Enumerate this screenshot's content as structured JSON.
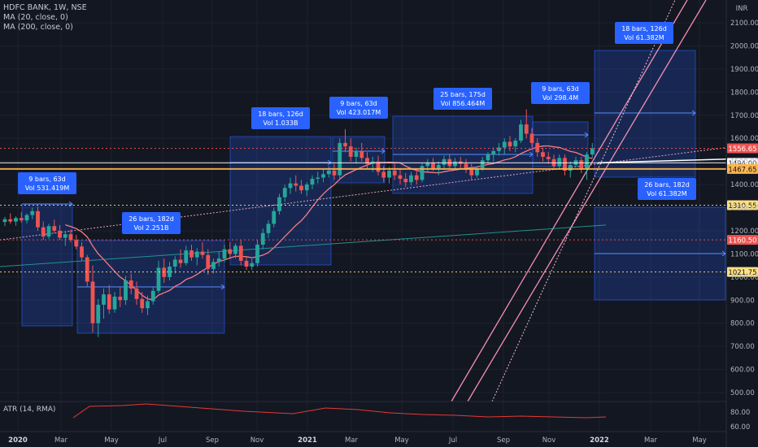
{
  "chart_data": {
    "type": "candlestick",
    "symbol_line": "HDFC BANK, 1W, NSE",
    "indicators": [
      "MA (20, close, 0)",
      "MA (200, close, 0)"
    ],
    "atr_label": "ATR (14, RMA)",
    "currency": "INR",
    "ylim": [
      460,
      2180
    ],
    "y_ticks": [
      500,
      600,
      700,
      800,
      900,
      1000,
      1100,
      1200,
      1300,
      1400,
      1500,
      1600,
      1700,
      1800,
      1900,
      2000,
      2100
    ],
    "y_tick_labels": [
      "500.00",
      "600.00",
      "700.00",
      "800.00",
      "900.00",
      "1000.00",
      "1100.00",
      "1200.00",
      "1300.00",
      "1400.00",
      "1500.00",
      "1600.00",
      "1700.00",
      "1800.00",
      "1900.00",
      "2000.00",
      "2100.00"
    ],
    "atr_ticks": [
      "80.00",
      "60.00"
    ],
    "x_ticks": [
      "2020",
      "Mar",
      "May",
      "Jul",
      "Sep",
      "Nov",
      "2021",
      "Mar",
      "May",
      "Jul",
      "Sep",
      "Nov",
      "2022",
      "Mar",
      "May"
    ],
    "price_badges": [
      {
        "value": 1556.65,
        "label": "1556.65",
        "color": "#ef5350"
      },
      {
        "value": 1494.0,
        "label": "1494.00",
        "color": "#ffffff"
      },
      {
        "value": 1467.65,
        "label": "1467.65",
        "color": "#ffb74d"
      },
      {
        "value": 1310.55,
        "label": "1310.55",
        "color": "#ffe082"
      },
      {
        "value": 1160.5,
        "label": "1160.50",
        "color": "#ef5350"
      },
      {
        "value": 1021.75,
        "label": "1021.75",
        "color": "#ffe082"
      }
    ],
    "range_boxes": [
      {
        "bars": "9 bars, 63d",
        "vol": "Vol 531.419M"
      },
      {
        "bars": "26 bars, 182d",
        "vol": "Vol 2.251B"
      },
      {
        "bars": "18 bars, 126d",
        "vol": "Vol 1.033B"
      },
      {
        "bars": "9 bars, 63d",
        "vol": "Vol 423.017M"
      },
      {
        "bars": "25 bars, 175d",
        "vol": "Vol 856.464M"
      },
      {
        "bars": "9 bars, 63d",
        "vol": "Vol 298.4M"
      },
      {
        "bars": "18 bars, 126d",
        "vol": "Vol 61.382M"
      },
      {
        "bars": "26 bars, 182d",
        "vol": "Vol 61.382M"
      }
    ],
    "candles": [
      {
        "o": 1238,
        "h": 1260,
        "l": 1220,
        "c": 1250
      },
      {
        "o": 1250,
        "h": 1275,
        "l": 1230,
        "c": 1240
      },
      {
        "o": 1240,
        "h": 1262,
        "l": 1222,
        "c": 1255
      },
      {
        "o": 1255,
        "h": 1280,
        "l": 1235,
        "c": 1245
      },
      {
        "o": 1245,
        "h": 1275,
        "l": 1232,
        "c": 1268
      },
      {
        "o": 1268,
        "h": 1300,
        "l": 1250,
        "c": 1285
      },
      {
        "o": 1285,
        "h": 1305,
        "l": 1200,
        "c": 1215
      },
      {
        "o": 1215,
        "h": 1240,
        "l": 1160,
        "c": 1175
      },
      {
        "o": 1175,
        "h": 1230,
        "l": 1165,
        "c": 1220
      },
      {
        "o": 1220,
        "h": 1248,
        "l": 1190,
        "c": 1200
      },
      {
        "o": 1200,
        "h": 1225,
        "l": 1160,
        "c": 1170
      },
      {
        "o": 1170,
        "h": 1195,
        "l": 1135,
        "c": 1185
      },
      {
        "o": 1185,
        "h": 1205,
        "l": 1150,
        "c": 1160
      },
      {
        "o": 1160,
        "h": 1182,
        "l": 1120,
        "c": 1132
      },
      {
        "o": 1132,
        "h": 1150,
        "l": 1070,
        "c": 1085
      },
      {
        "o": 1085,
        "h": 1095,
        "l": 960,
        "c": 980
      },
      {
        "o": 980,
        "h": 1050,
        "l": 760,
        "c": 800
      },
      {
        "o": 800,
        "h": 905,
        "l": 740,
        "c": 880
      },
      {
        "o": 880,
        "h": 950,
        "l": 820,
        "c": 925
      },
      {
        "o": 925,
        "h": 965,
        "l": 840,
        "c": 860
      },
      {
        "o": 860,
        "h": 935,
        "l": 845,
        "c": 915
      },
      {
        "o": 915,
        "h": 955,
        "l": 870,
        "c": 900
      },
      {
        "o": 900,
        "h": 1005,
        "l": 880,
        "c": 985
      },
      {
        "o": 985,
        "h": 1015,
        "l": 925,
        "c": 950
      },
      {
        "o": 950,
        "h": 980,
        "l": 880,
        "c": 905
      },
      {
        "o": 905,
        "h": 935,
        "l": 845,
        "c": 865
      },
      {
        "o": 865,
        "h": 920,
        "l": 835,
        "c": 895
      },
      {
        "o": 895,
        "h": 955,
        "l": 880,
        "c": 940
      },
      {
        "o": 940,
        "h": 1070,
        "l": 930,
        "c": 1040
      },
      {
        "o": 1040,
        "h": 1080,
        "l": 975,
        "c": 1000
      },
      {
        "o": 1000,
        "h": 1065,
        "l": 985,
        "c": 1045
      },
      {
        "o": 1045,
        "h": 1090,
        "l": 1015,
        "c": 1075
      },
      {
        "o": 1075,
        "h": 1120,
        "l": 1040,
        "c": 1060
      },
      {
        "o": 1060,
        "h": 1135,
        "l": 1050,
        "c": 1115
      },
      {
        "o": 1115,
        "h": 1140,
        "l": 1070,
        "c": 1085
      },
      {
        "o": 1085,
        "h": 1125,
        "l": 1050,
        "c": 1110
      },
      {
        "o": 1110,
        "h": 1150,
        "l": 1080,
        "c": 1095
      },
      {
        "o": 1095,
        "h": 1120,
        "l": 1010,
        "c": 1035
      },
      {
        "o": 1035,
        "h": 1080,
        "l": 1015,
        "c": 1065
      },
      {
        "o": 1065,
        "h": 1110,
        "l": 1045,
        "c": 1080
      },
      {
        "o": 1080,
        "h": 1140,
        "l": 1065,
        "c": 1120
      },
      {
        "o": 1120,
        "h": 1150,
        "l": 1085,
        "c": 1100
      },
      {
        "o": 1100,
        "h": 1145,
        "l": 1080,
        "c": 1135
      },
      {
        "o": 1135,
        "h": 1160,
        "l": 1050,
        "c": 1070
      },
      {
        "o": 1070,
        "h": 1090,
        "l": 1030,
        "c": 1045
      },
      {
        "o": 1045,
        "h": 1080,
        "l": 1030,
        "c": 1060
      },
      {
        "o": 1060,
        "h": 1160,
        "l": 1045,
        "c": 1140
      },
      {
        "o": 1140,
        "h": 1210,
        "l": 1120,
        "c": 1190
      },
      {
        "o": 1190,
        "h": 1245,
        "l": 1170,
        "c": 1230
      },
      {
        "o": 1230,
        "h": 1300,
        "l": 1215,
        "c": 1285
      },
      {
        "o": 1285,
        "h": 1360,
        "l": 1270,
        "c": 1345
      },
      {
        "o": 1345,
        "h": 1400,
        "l": 1325,
        "c": 1385
      },
      {
        "o": 1385,
        "h": 1430,
        "l": 1360,
        "c": 1405
      },
      {
        "o": 1405,
        "h": 1440,
        "l": 1370,
        "c": 1395
      },
      {
        "o": 1395,
        "h": 1420,
        "l": 1360,
        "c": 1375
      },
      {
        "o": 1375,
        "h": 1410,
        "l": 1350,
        "c": 1400
      },
      {
        "o": 1400,
        "h": 1440,
        "l": 1380,
        "c": 1425
      },
      {
        "o": 1425,
        "h": 1455,
        "l": 1405,
        "c": 1430
      },
      {
        "o": 1430,
        "h": 1465,
        "l": 1410,
        "c": 1445
      },
      {
        "o": 1445,
        "h": 1480,
        "l": 1430,
        "c": 1460
      },
      {
        "o": 1460,
        "h": 1490,
        "l": 1420,
        "c": 1440
      },
      {
        "o": 1440,
        "h": 1600,
        "l": 1420,
        "c": 1580
      },
      {
        "o": 1580,
        "h": 1640,
        "l": 1540,
        "c": 1565
      },
      {
        "o": 1565,
        "h": 1600,
        "l": 1500,
        "c": 1520
      },
      {
        "o": 1520,
        "h": 1560,
        "l": 1490,
        "c": 1545
      },
      {
        "o": 1545,
        "h": 1580,
        "l": 1500,
        "c": 1515
      },
      {
        "o": 1515,
        "h": 1540,
        "l": 1470,
        "c": 1490
      },
      {
        "o": 1490,
        "h": 1520,
        "l": 1455,
        "c": 1500
      },
      {
        "o": 1500,
        "h": 1525,
        "l": 1440,
        "c": 1455
      },
      {
        "o": 1455,
        "h": 1480,
        "l": 1410,
        "c": 1430
      },
      {
        "o": 1430,
        "h": 1475,
        "l": 1405,
        "c": 1460
      },
      {
        "o": 1460,
        "h": 1490,
        "l": 1420,
        "c": 1440
      },
      {
        "o": 1440,
        "h": 1470,
        "l": 1400,
        "c": 1425
      },
      {
        "o": 1425,
        "h": 1450,
        "l": 1390,
        "c": 1410
      },
      {
        "o": 1410,
        "h": 1455,
        "l": 1395,
        "c": 1440
      },
      {
        "o": 1440,
        "h": 1470,
        "l": 1400,
        "c": 1420
      },
      {
        "o": 1420,
        "h": 1495,
        "l": 1410,
        "c": 1480
      },
      {
        "o": 1480,
        "h": 1510,
        "l": 1455,
        "c": 1495
      },
      {
        "o": 1495,
        "h": 1515,
        "l": 1460,
        "c": 1470
      },
      {
        "o": 1470,
        "h": 1500,
        "l": 1440,
        "c": 1485
      },
      {
        "o": 1485,
        "h": 1525,
        "l": 1470,
        "c": 1510
      },
      {
        "o": 1510,
        "h": 1530,
        "l": 1470,
        "c": 1480
      },
      {
        "o": 1480,
        "h": 1515,
        "l": 1460,
        "c": 1500
      },
      {
        "o": 1500,
        "h": 1520,
        "l": 1470,
        "c": 1490
      },
      {
        "o": 1490,
        "h": 1510,
        "l": 1450,
        "c": 1465
      },
      {
        "o": 1465,
        "h": 1490,
        "l": 1420,
        "c": 1440
      },
      {
        "o": 1440,
        "h": 1480,
        "l": 1430,
        "c": 1470
      },
      {
        "o": 1470,
        "h": 1520,
        "l": 1460,
        "c": 1505
      },
      {
        "o": 1505,
        "h": 1540,
        "l": 1490,
        "c": 1530
      },
      {
        "o": 1530,
        "h": 1560,
        "l": 1500,
        "c": 1545
      },
      {
        "o": 1545,
        "h": 1580,
        "l": 1525,
        "c": 1560
      },
      {
        "o": 1560,
        "h": 1600,
        "l": 1530,
        "c": 1585
      },
      {
        "o": 1585,
        "h": 1610,
        "l": 1545,
        "c": 1565
      },
      {
        "o": 1565,
        "h": 1600,
        "l": 1540,
        "c": 1590
      },
      {
        "o": 1590,
        "h": 1680,
        "l": 1580,
        "c": 1660
      },
      {
        "o": 1660,
        "h": 1725,
        "l": 1600,
        "c": 1620
      },
      {
        "o": 1620,
        "h": 1645,
        "l": 1560,
        "c": 1580
      },
      {
        "o": 1580,
        "h": 1600,
        "l": 1520,
        "c": 1540
      },
      {
        "o": 1540,
        "h": 1560,
        "l": 1500,
        "c": 1520
      },
      {
        "o": 1520,
        "h": 1540,
        "l": 1490,
        "c": 1510
      },
      {
        "o": 1510,
        "h": 1530,
        "l": 1470,
        "c": 1480
      },
      {
        "o": 1480,
        "h": 1530,
        "l": 1470,
        "c": 1515
      },
      {
        "o": 1515,
        "h": 1530,
        "l": 1440,
        "c": 1460
      },
      {
        "o": 1460,
        "h": 1500,
        "l": 1430,
        "c": 1485
      },
      {
        "o": 1485,
        "h": 1520,
        "l": 1475,
        "c": 1505
      },
      {
        "o": 1505,
        "h": 1520,
        "l": 1450,
        "c": 1470
      },
      {
        "o": 1470,
        "h": 1540,
        "l": 1420,
        "c": 1530
      },
      {
        "o": 1530,
        "h": 1580,
        "l": 1515,
        "c": 1556.65
      }
    ]
  }
}
